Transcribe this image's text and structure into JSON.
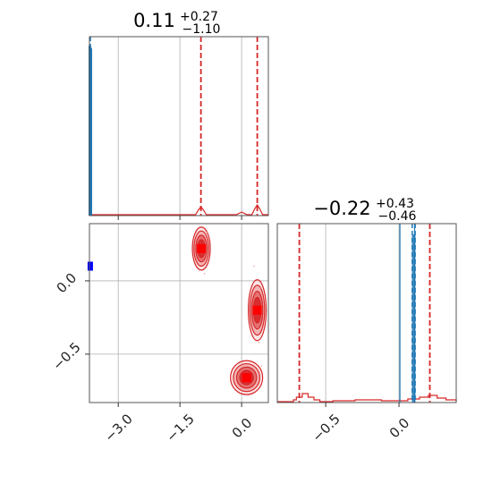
{
  "chart_data": [
    {
      "type": "histogram",
      "panel": "x-marginal",
      "title": {
        "main": "0.11",
        "sup": "+0.27",
        "sub": "−1.10"
      },
      "grid": true,
      "colors": {
        "posterior": "#d62728",
        "reference": "#1f77b4"
      },
      "xlim": [
        -3.7,
        0.65
      ],
      "x_ticks": [
        -3.0,
        -1.5,
        0.0
      ],
      "quantiles": [
        -0.99,
        0.38
      ],
      "reference_lines": [
        -3.7
      ],
      "red_peaks": [
        {
          "x": -0.99,
          "h": 0.05
        },
        {
          "x": 0.38,
          "h": 0.06
        },
        {
          "x": 0.0,
          "h": 0.02
        }
      ],
      "blue_peak": {
        "x": -3.7,
        "h": 0.98
      }
    },
    {
      "type": "contour",
      "panel": "2d-density",
      "grid": true,
      "xlim": [
        -3.7,
        0.65
      ],
      "ylim": [
        -0.83,
        0.39
      ],
      "x_ticks": [
        -3.0,
        -1.5,
        0.0
      ],
      "x_tick_labels": [
        "−3.0",
        "−1.5",
        "0.0"
      ],
      "y_ticks": [
        0.0,
        -0.5
      ],
      "y_tick_labels": [
        "0.0",
        "−0.5"
      ],
      "modes": [
        {
          "x": -0.98,
          "y": 0.22
        },
        {
          "x": 0.38,
          "y": -0.2
        },
        {
          "x": 0.12,
          "y": -0.66
        }
      ],
      "reference_point": {
        "x": -3.68,
        "y": 0.1
      }
    },
    {
      "type": "histogram",
      "panel": "y-marginal",
      "title": {
        "main": "−0.22",
        "sup": "+0.43",
        "sub": "−0.46"
      },
      "grid": true,
      "xlim": [
        -0.83,
        0.39
      ],
      "x_ticks": [
        -0.5,
        0.0
      ],
      "x_tick_labels": [
        "−0.5",
        "0.0"
      ],
      "quantiles": [
        -0.68,
        0.21
      ],
      "reference_quantiles": [
        0.09,
        0.11
      ],
      "reference_lines": [
        0.0,
        0.1
      ]
    }
  ]
}
